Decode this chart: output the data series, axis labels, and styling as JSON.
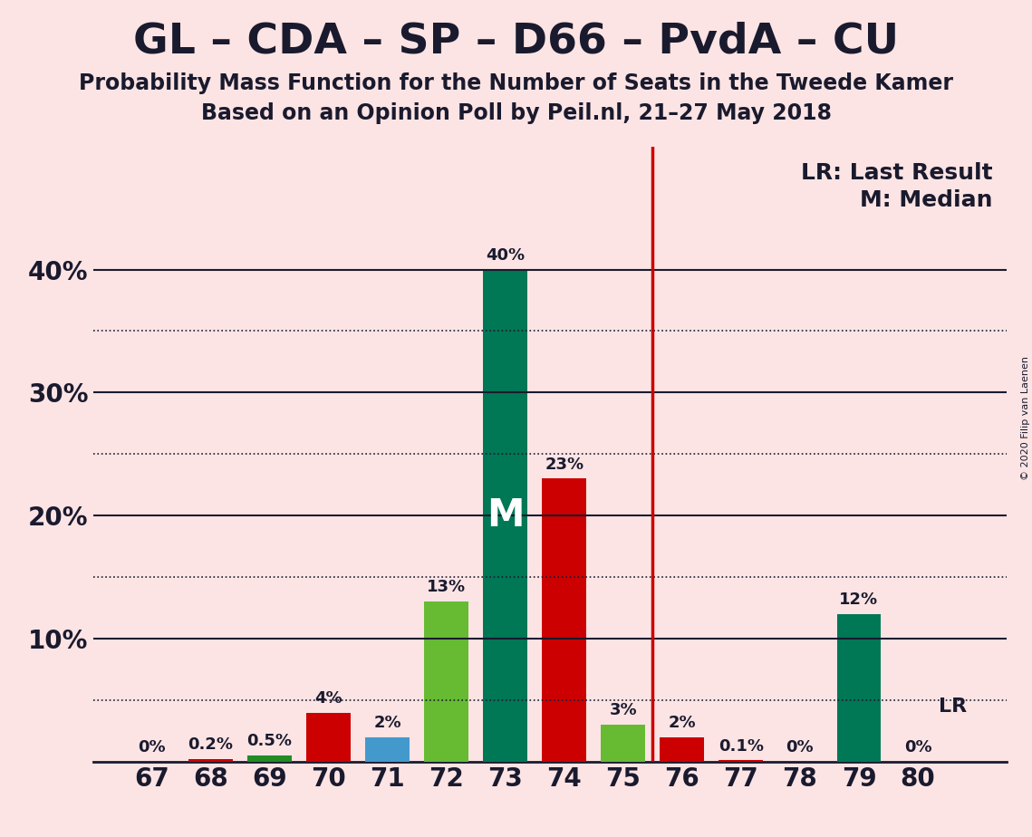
{
  "title": "GL – CDA – SP – D66 – PvdA – CU",
  "subtitle1": "Probability Mass Function for the Number of Seats in the Tweede Kamer",
  "subtitle2": "Based on an Opinion Poll by Peil.nl, 21–27 May 2018",
  "copyright": "© 2020 Filip van Laenen",
  "background_color": "#fce4e4",
  "bars": [
    {
      "x": 67,
      "value": 0.0,
      "color": "#cc0000",
      "label": "0%"
    },
    {
      "x": 68,
      "value": 0.2,
      "color": "#cc0000",
      "label": "0.2%"
    },
    {
      "x": 69,
      "value": 0.5,
      "color": "#228b22",
      "label": "0.5%"
    },
    {
      "x": 70,
      "value": 4.0,
      "color": "#cc0000",
      "label": "4%"
    },
    {
      "x": 71,
      "value": 2.0,
      "color": "#4499cc",
      "label": "2%"
    },
    {
      "x": 72,
      "value": 13.0,
      "color": "#66bb33",
      "label": "13%"
    },
    {
      "x": 73,
      "value": 40.0,
      "color": "#007755",
      "label": "40%"
    },
    {
      "x": 74,
      "value": 23.0,
      "color": "#cc0000",
      "label": "23%"
    },
    {
      "x": 75,
      "value": 3.0,
      "color": "#66bb33",
      "label": "3%"
    },
    {
      "x": 76,
      "value": 2.0,
      "color": "#cc0000",
      "label": "2%"
    },
    {
      "x": 77,
      "value": 0.1,
      "color": "#cc0000",
      "label": "0.1%"
    },
    {
      "x": 78,
      "value": 0.0,
      "color": "#cc0000",
      "label": "0%"
    },
    {
      "x": 79,
      "value": 12.0,
      "color": "#007755",
      "label": "12%"
    },
    {
      "x": 80,
      "value": 0.0,
      "color": "#007755",
      "label": "0%"
    }
  ],
  "median_x": 73,
  "lr_line_color": "#cc0000",
  "lr_line_x": 75.5,
  "lr_label": "LR",
  "median_label": "M",
  "legend_lr": "LR: Last Result",
  "legend_m": "M: Median",
  "ylim": [
    0,
    50
  ],
  "yticks": [
    0,
    10,
    20,
    30,
    40
  ],
  "ytick_labels": [
    "",
    "10%",
    "20%",
    "30%",
    "40%"
  ],
  "xlim": [
    66.0,
    81.5
  ],
  "xticks": [
    67,
    68,
    69,
    70,
    71,
    72,
    73,
    74,
    75,
    76,
    77,
    78,
    79,
    80
  ],
  "dotted_gridlines": [
    5,
    15,
    25,
    35
  ],
  "solid_gridlines": [
    10,
    20,
    30,
    40
  ],
  "bar_width": 0.75,
  "title_fontsize": 34,
  "subtitle_fontsize": 17,
  "tick_fontsize": 20,
  "label_fontsize": 13,
  "legend_fontsize": 18,
  "median_fontsize": 30
}
